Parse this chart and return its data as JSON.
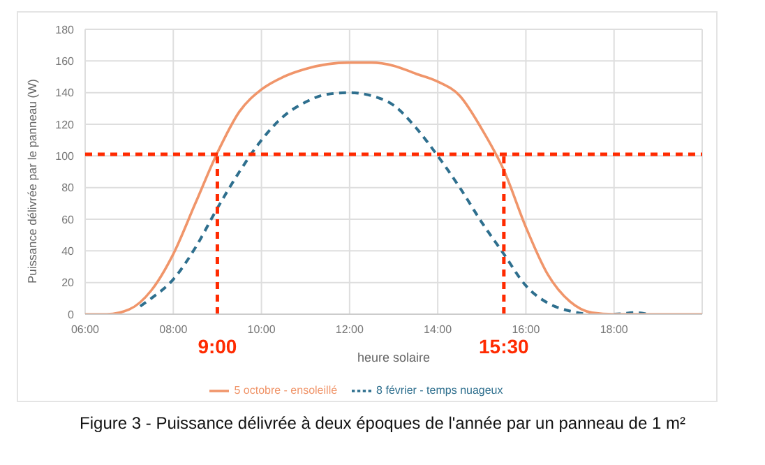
{
  "chart_data": {
    "type": "line",
    "title": "Figure 3 - Puissance délivrée à deux époques de l'année par un panneau de 1 m²",
    "xlabel": "heure solaire",
    "ylabel": "Puissance délivrée par le panneau (W)",
    "xlim": [
      6,
      20
    ],
    "xticks": [
      {
        "value": 6,
        "label": "06:00"
      },
      {
        "value": 8,
        "label": "08:00"
      },
      {
        "value": 10,
        "label": "10:00"
      },
      {
        "value": 12,
        "label": "12:00"
      },
      {
        "value": 14,
        "label": "14:00"
      },
      {
        "value": 16,
        "label": "16:00"
      },
      {
        "value": 18,
        "label": "18:00"
      },
      {
        "value": 20,
        "label": null
      }
    ],
    "ylim": [
      0,
      180
    ],
    "yticks": [
      0,
      20,
      40,
      60,
      80,
      100,
      120,
      140,
      160,
      180
    ],
    "grid": true,
    "legend": "bottom",
    "series": [
      {
        "name": "8 février - temps nuageux",
        "color": "#2e6f8e",
        "line_style": "dashed",
        "x": [
          7.25,
          7.5,
          8,
          8.5,
          9,
          9.5,
          10,
          10.5,
          11,
          11.5,
          12,
          12.5,
          13,
          13.5,
          14,
          14.5,
          15,
          15.5,
          16,
          16.5,
          17,
          17.5,
          18,
          18.5,
          18.75
        ],
        "values": [
          5,
          10,
          22,
          42,
          67,
          90,
          110,
          125,
          134,
          139,
          140,
          138,
          132,
          118,
          100,
          80,
          58,
          38,
          18,
          7,
          2,
          0,
          0,
          1,
          0
        ]
      },
      {
        "name": "5 octobre - ensoleillé",
        "color": "#f0956a",
        "line_style": "solid",
        "x": [
          6,
          6.5,
          7,
          7.5,
          8,
          8.5,
          9,
          9.5,
          10,
          10.5,
          11,
          11.5,
          12,
          12.5,
          13,
          13.5,
          14,
          14.5,
          15,
          15.5,
          16,
          16.5,
          17,
          17.5,
          18,
          19,
          20
        ],
        "values": [
          0,
          0,
          3,
          15,
          38,
          70,
          102,
          128,
          142,
          150,
          155,
          158,
          159,
          159,
          157,
          152,
          147,
          138,
          117,
          91,
          55,
          25,
          8,
          1,
          0,
          0,
          0
        ]
      }
    ],
    "ref_lines": [
      {
        "axis": "y",
        "value": 101,
        "color": "#ff2a00",
        "line_style": "dashed"
      },
      {
        "axis": "x",
        "value": 9,
        "label": "9:00",
        "color": "#ff2a00",
        "line_style": "dashed"
      },
      {
        "axis": "x",
        "value": 15.5,
        "label": "15:30",
        "color": "#ff2a00",
        "line_style": "dashed"
      }
    ]
  }
}
